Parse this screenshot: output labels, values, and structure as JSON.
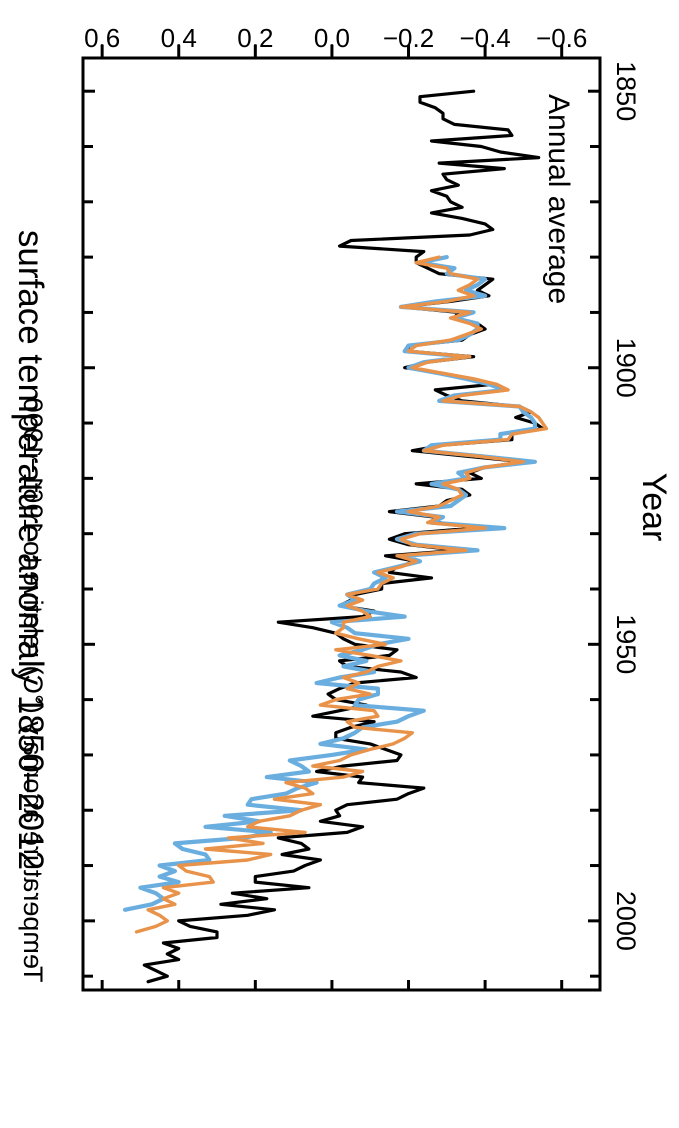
{
  "chart_data": {
    "type": "line",
    "title": "surface temperature anomaly 1850–2012",
    "subtitle": "Annual average",
    "xlabel": "Year",
    "ylabel": "Temperature anomaly (°C) relative to 1961−1990",
    "xlim": [
      1844,
      2012.5
    ],
    "ylim": [
      -0.7,
      0.65
    ],
    "x_ticks": [
      1850,
      1900,
      1950,
      2000
    ],
    "x_tick_labels": [
      "1850",
      "1900",
      "1950",
      "2000"
    ],
    "y_ticks": [
      -0.6,
      -0.4,
      -0.2,
      0.0,
      0.2,
      0.4,
      0.6
    ],
    "y_tick_labels": [
      "−0.6",
      "−0.4",
      "−0.2",
      "0.0",
      "0.2",
      "0.4",
      "0.6"
    ],
    "grid": false,
    "orientation": "rotated 90° clockwise",
    "series": [
      {
        "color": "#000000",
        "x_start": 1850,
        "values": [
          -0.37,
          -0.23,
          -0.23,
          -0.27,
          -0.29,
          -0.29,
          -0.32,
          -0.46,
          -0.47,
          -0.26,
          -0.39,
          -0.44,
          -0.54,
          -0.28,
          -0.45,
          -0.29,
          -0.3,
          -0.33,
          -0.26,
          -0.3,
          -0.31,
          -0.34,
          -0.26,
          -0.34,
          -0.4,
          -0.42,
          -0.36,
          -0.05,
          -0.02,
          -0.24,
          -0.22,
          -0.22,
          -0.25,
          -0.28,
          -0.42,
          -0.4,
          -0.38,
          -0.41,
          -0.31,
          -0.18,
          -0.33,
          -0.32,
          -0.38,
          -0.4,
          -0.36,
          -0.34,
          -0.2,
          -0.2,
          -0.37,
          -0.25,
          -0.19,
          -0.29,
          -0.36,
          -0.42,
          -0.27,
          -0.3,
          -0.34,
          -0.49,
          -0.52,
          -0.48,
          -0.53,
          -0.55,
          -0.47,
          -0.47,
          -0.29,
          -0.21,
          -0.35,
          -0.5,
          -0.4,
          -0.36,
          -0.39,
          -0.22,
          -0.34,
          -0.36,
          -0.3,
          -0.28,
          -0.15,
          -0.27,
          -0.28,
          -0.37,
          -0.19,
          -0.15,
          -0.2,
          -0.33,
          -0.14,
          -0.22,
          -0.17,
          -0.15,
          -0.26,
          -0.13,
          -0.13,
          -0.06,
          -0.05,
          -0.02,
          -0.11,
          -0.08,
          0.14,
          0.05,
          -0.01,
          -0.03,
          -0.06,
          -0.17,
          -0.15,
          -0.02,
          -0.04,
          -0.18,
          -0.22,
          -0.06,
          -0.02,
          0.01,
          -0.01,
          -0.09,
          -0.02,
          0.05,
          -0.11,
          -0.05,
          -0.01,
          -0.01,
          -0.1,
          -0.14,
          -0.18,
          -0.17,
          -0.03,
          0.04,
          -0.08,
          -0.07,
          -0.24,
          -0.2,
          -0.17,
          -0.04,
          -0.01,
          -0.02,
          0.03,
          -0.08,
          -0.04,
          0.14,
          0.08,
          0.06,
          0.13,
          0.03,
          0.07,
          0.1,
          0.2,
          0.2,
          0.06,
          0.26,
          0.17,
          0.29,
          0.15,
          0.22,
          0.4,
          0.37,
          0.3,
          0.3,
          0.44,
          0.4,
          0.43,
          0.4,
          0.49,
          0.46,
          0.43,
          0.48
        ]
      },
      {
        "color": "#6AAEE0",
        "x_start": 1880,
        "values": [
          -0.3,
          -0.23,
          -0.32,
          -0.3,
          -0.4,
          -0.38,
          -0.35,
          -0.4,
          -0.27,
          -0.18,
          -0.37,
          -0.32,
          -0.38,
          -0.38,
          -0.36,
          -0.33,
          -0.2,
          -0.19,
          -0.35,
          -0.24,
          -0.2,
          -0.28,
          -0.35,
          -0.41,
          -0.45,
          -0.32,
          -0.28,
          -0.49,
          -0.5,
          -0.52,
          -0.53,
          -0.53,
          -0.44,
          -0.44,
          -0.26,
          -0.24,
          -0.39,
          -0.53,
          -0.4,
          -0.33,
          -0.35,
          -0.26,
          -0.33,
          -0.35,
          -0.33,
          -0.31,
          -0.17,
          -0.29,
          -0.26,
          -0.45,
          -0.22,
          -0.17,
          -0.22,
          -0.38,
          -0.19,
          -0.23,
          -0.17,
          -0.11,
          -0.14,
          -0.11,
          -0.1,
          -0.04,
          -0.06,
          -0.02,
          -0.09,
          -0.19,
          0.0,
          -0.04,
          -0.06,
          -0.2,
          -0.12,
          -0.08,
          -0.02,
          -0.09,
          -0.03,
          -0.11,
          -0.02,
          0.04,
          -0.12,
          -0.12,
          -0.07,
          -0.06,
          -0.24,
          -0.2,
          -0.17,
          -0.08,
          -0.06,
          -0.03,
          0.03,
          -0.09,
          0.0,
          0.11,
          0.08,
          0.06,
          0.17,
          0.04,
          0.09,
          0.12,
          0.21,
          0.22,
          0.08,
          0.28,
          0.19,
          0.33,
          0.16,
          0.23,
          0.41,
          0.39,
          0.33,
          0.32,
          0.45,
          0.41,
          0.45,
          0.4,
          0.5,
          0.46,
          0.44,
          0.47,
          0.54
        ]
      },
      {
        "color": "#E8924A",
        "x_start": 1880,
        "values": [
          -0.28,
          -0.22,
          -0.3,
          -0.31,
          -0.38,
          -0.36,
          -0.33,
          -0.37,
          -0.3,
          -0.18,
          -0.36,
          -0.31,
          -0.36,
          -0.39,
          -0.35,
          -0.31,
          -0.22,
          -0.2,
          -0.36,
          -0.25,
          -0.21,
          -0.29,
          -0.37,
          -0.43,
          -0.46,
          -0.34,
          -0.29,
          -0.49,
          -0.52,
          -0.54,
          -0.55,
          -0.56,
          -0.47,
          -0.46,
          -0.29,
          -0.24,
          -0.38,
          -0.5,
          -0.4,
          -0.35,
          -0.36,
          -0.29,
          -0.33,
          -0.34,
          -0.31,
          -0.28,
          -0.2,
          -0.28,
          -0.25,
          -0.4,
          -0.23,
          -0.18,
          -0.21,
          -0.35,
          -0.17,
          -0.22,
          -0.18,
          -0.12,
          -0.16,
          -0.13,
          -0.12,
          -0.04,
          -0.08,
          -0.04,
          -0.08,
          -0.1,
          -0.03,
          -0.03,
          -0.01,
          -0.07,
          -0.14,
          -0.01,
          -0.1,
          -0.18,
          -0.12,
          -0.09,
          -0.03,
          -0.07,
          -0.04,
          -0.1,
          -0.01,
          0.03,
          -0.11,
          -0.12,
          -0.04,
          -0.06,
          -0.21,
          -0.19,
          -0.16,
          -0.1,
          -0.05,
          -0.02,
          0.05,
          -0.08,
          -0.03,
          0.12,
          0.07,
          0.05,
          0.15,
          0.03,
          0.08,
          0.11,
          0.19,
          0.22,
          0.07,
          0.27,
          0.18,
          0.33,
          0.16,
          0.22,
          0.4,
          0.38,
          0.32,
          0.31,
          0.44,
          0.4,
          0.44,
          0.41,
          0.48,
          0.45,
          0.43,
          0.46,
          0.51
        ]
      }
    ]
  }
}
